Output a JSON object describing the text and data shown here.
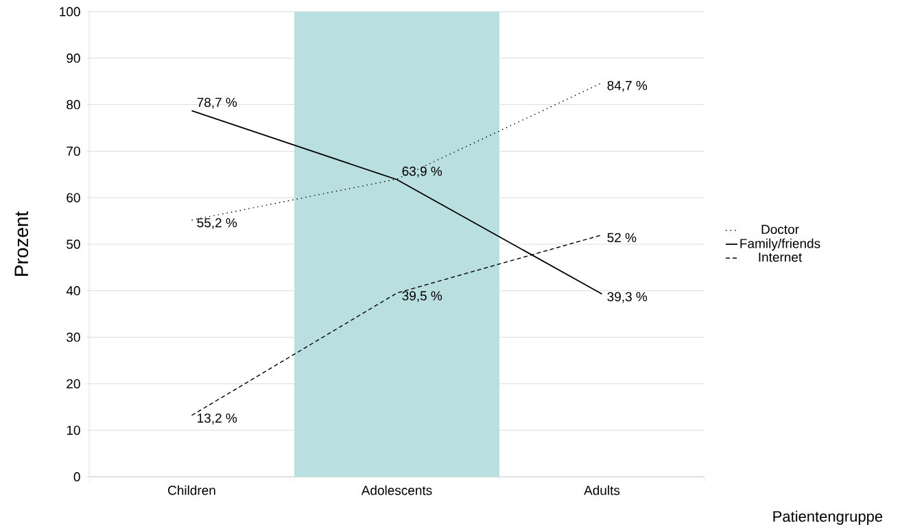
{
  "chart_data": {
    "type": "line",
    "xlabel": "Patientengruppe",
    "ylabel": "Prozent",
    "categories": [
      "Children",
      "Adolescents",
      "Adults"
    ],
    "series": [
      {
        "name": "Doctor",
        "color": "#000000",
        "line_style": "dotted",
        "values": [
          55.2,
          64,
          84.7
        ],
        "value_labels": [
          "55,2 %",
          null,
          "84,7 %"
        ]
      },
      {
        "name": "Family/friends",
        "color": "#000000",
        "line_style": "solid",
        "values": [
          78.7,
          63.9,
          39.3
        ],
        "value_labels": [
          "78,7 %",
          "63,9 %",
          "39,3 %"
        ]
      },
      {
        "name": "Internet",
        "color": "#000000",
        "line_style": "dashed",
        "values": [
          13.2,
          39.5,
          52
        ],
        "value_labels": [
          "13,2 %",
          "39,5 %",
          "52 %"
        ]
      }
    ],
    "ylim": [
      0,
      100
    ],
    "yticks": [
      0,
      10,
      20,
      30,
      40,
      50,
      60,
      70,
      80,
      90,
      100
    ],
    "bands": [
      {
        "axis": "x",
        "from": "Adolescents",
        "to": "Adolescents",
        "color": "#b9dfe1"
      }
    ],
    "grid": "y",
    "legend": "right",
    "marker": "none"
  }
}
